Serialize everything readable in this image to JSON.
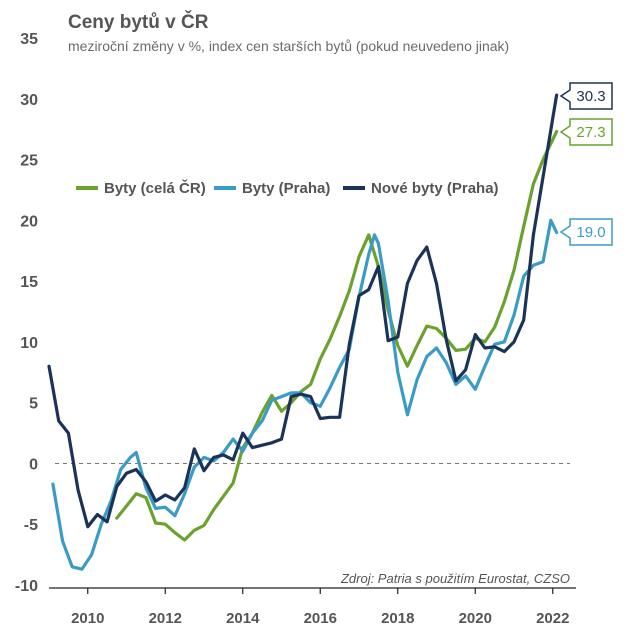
{
  "chart_data": {
    "type": "line",
    "title": "Ceny bytů v ČR",
    "subtitle": "meziroční změny v %, index cen starších bytů (pokud neuvedeno jinak)",
    "xlabel": "",
    "ylabel": "",
    "xlim": [
      2009,
      2022.6
    ],
    "ylim": [
      -10,
      35
    ],
    "yticks": [
      -10,
      -5,
      0,
      5,
      10,
      15,
      20,
      25,
      30,
      35
    ],
    "ytick_labels": [
      "-10",
      "-5",
      "0",
      "5",
      "10",
      "15",
      "20",
      "25",
      "30",
      "35"
    ],
    "xticks": [
      2010,
      2012,
      2014,
      2016,
      2018,
      2020,
      2022
    ],
    "xtick_labels": [
      "2010",
      "2012",
      "2014",
      "2016",
      "2018",
      "2020",
      "2022"
    ],
    "zero_line": "dashed",
    "grid": false,
    "legend_position": "center-left",
    "source": "Zdroj: Patria s použitím Eurostat, CZSO",
    "series": [
      {
        "name": "Byty (celá ČR)",
        "color": "#6aa22d",
        "end_label": "27.3",
        "points": [
          [
            2010.75,
            -4.5
          ],
          [
            2011.0,
            -3.5
          ],
          [
            2011.25,
            -2.5
          ],
          [
            2011.5,
            -2.8
          ],
          [
            2011.75,
            -4.9
          ],
          [
            2012.0,
            -5.0
          ],
          [
            2012.25,
            -5.7
          ],
          [
            2012.5,
            -6.3
          ],
          [
            2012.75,
            -5.5
          ],
          [
            2013.0,
            -5.1
          ],
          [
            2013.25,
            -3.8
          ],
          [
            2013.5,
            -2.7
          ],
          [
            2013.75,
            -1.6
          ],
          [
            2014.0,
            1.3
          ],
          [
            2014.25,
            2.5
          ],
          [
            2014.5,
            4.2
          ],
          [
            2014.75,
            5.6
          ],
          [
            2015.0,
            4.3
          ],
          [
            2015.25,
            5.0
          ],
          [
            2015.5,
            5.9
          ],
          [
            2015.75,
            6.5
          ],
          [
            2016.0,
            8.6
          ],
          [
            2016.25,
            10.2
          ],
          [
            2016.5,
            12.1
          ],
          [
            2016.75,
            14.2
          ],
          [
            2017.0,
            17.0
          ],
          [
            2017.25,
            18.8
          ],
          [
            2017.5,
            16.2
          ],
          [
            2017.75,
            12.6
          ],
          [
            2018.0,
            9.7
          ],
          [
            2018.25,
            8.0
          ],
          [
            2018.5,
            9.7
          ],
          [
            2018.75,
            11.3
          ],
          [
            2019.0,
            11.1
          ],
          [
            2019.25,
            10.3
          ],
          [
            2019.5,
            9.3
          ],
          [
            2019.75,
            9.4
          ],
          [
            2020.0,
            10.3
          ],
          [
            2020.25,
            10.0
          ],
          [
            2020.5,
            11.2
          ],
          [
            2020.75,
            13.3
          ],
          [
            2021.0,
            15.9
          ],
          [
            2021.25,
            19.5
          ],
          [
            2021.5,
            23.0
          ],
          [
            2021.75,
            25.0
          ],
          [
            2022.1,
            27.3
          ]
        ]
      },
      {
        "name": "Byty (Praha)",
        "color": "#3a9cc6",
        "end_label": "19.0",
        "points": [
          [
            2009.1,
            -1.7
          ],
          [
            2009.35,
            -6.4
          ],
          [
            2009.6,
            -8.5
          ],
          [
            2009.85,
            -8.7
          ],
          [
            2010.1,
            -7.5
          ],
          [
            2010.35,
            -5.0
          ],
          [
            2010.6,
            -3.1
          ],
          [
            2010.85,
            -0.5
          ],
          [
            2011.1,
            0.5
          ],
          [
            2011.25,
            0.9
          ],
          [
            2011.5,
            -2.0
          ],
          [
            2011.75,
            -3.7
          ],
          [
            2012.0,
            -3.6
          ],
          [
            2012.25,
            -4.3
          ],
          [
            2012.5,
            -2.5
          ],
          [
            2012.75,
            -0.3
          ],
          [
            2013.0,
            0.5
          ],
          [
            2013.25,
            0.2
          ],
          [
            2013.5,
            0.9
          ],
          [
            2013.75,
            2.0
          ],
          [
            2014.0,
            1.0
          ],
          [
            2014.25,
            2.5
          ],
          [
            2014.5,
            3.5
          ],
          [
            2014.75,
            5.2
          ],
          [
            2015.0,
            5.5
          ],
          [
            2015.25,
            5.8
          ],
          [
            2015.5,
            5.8
          ],
          [
            2015.75,
            5.0
          ],
          [
            2016.0,
            4.7
          ],
          [
            2016.25,
            6.2
          ],
          [
            2016.5,
            7.9
          ],
          [
            2016.75,
            9.4
          ],
          [
            2017.0,
            13.7
          ],
          [
            2017.25,
            17.2
          ],
          [
            2017.4,
            18.8
          ],
          [
            2017.5,
            18.1
          ],
          [
            2017.75,
            13.4
          ],
          [
            2018.0,
            7.5
          ],
          [
            2018.25,
            4.0
          ],
          [
            2018.5,
            6.9
          ],
          [
            2018.75,
            8.8
          ],
          [
            2019.0,
            9.5
          ],
          [
            2019.25,
            8.3
          ],
          [
            2019.5,
            6.5
          ],
          [
            2019.75,
            7.2
          ],
          [
            2020.0,
            6.1
          ],
          [
            2020.25,
            8.0
          ],
          [
            2020.5,
            9.8
          ],
          [
            2020.75,
            10.0
          ],
          [
            2021.0,
            12.2
          ],
          [
            2021.25,
            15.4
          ],
          [
            2021.5,
            16.3
          ],
          [
            2021.75,
            16.6
          ],
          [
            2021.95,
            20.0
          ],
          [
            2022.1,
            19.0
          ]
        ]
      },
      {
        "name": "Nové byty (Praha)",
        "color": "#1b3358",
        "end_label": "30.3",
        "points": [
          [
            2009.0,
            8.0
          ],
          [
            2009.25,
            3.5
          ],
          [
            2009.5,
            2.5
          ],
          [
            2009.75,
            -2.2
          ],
          [
            2010.0,
            -5.2
          ],
          [
            2010.25,
            -4.2
          ],
          [
            2010.5,
            -4.8
          ],
          [
            2010.75,
            -1.9
          ],
          [
            2011.0,
            -0.8
          ],
          [
            2011.25,
            -0.5
          ],
          [
            2011.5,
            -1.5
          ],
          [
            2011.75,
            -3.1
          ],
          [
            2012.0,
            -2.6
          ],
          [
            2012.25,
            -3.0
          ],
          [
            2012.5,
            -2.0
          ],
          [
            2012.75,
            1.2
          ],
          [
            2013.0,
            -0.6
          ],
          [
            2013.25,
            0.5
          ],
          [
            2013.5,
            0.7
          ],
          [
            2013.75,
            0.3
          ],
          [
            2014.0,
            2.5
          ],
          [
            2014.25,
            1.3
          ],
          [
            2014.5,
            1.5
          ],
          [
            2014.75,
            1.7
          ],
          [
            2015.0,
            2.0
          ],
          [
            2015.25,
            5.5
          ],
          [
            2015.5,
            5.7
          ],
          [
            2015.75,
            5.5
          ],
          [
            2016.0,
            3.7
          ],
          [
            2016.25,
            3.8
          ],
          [
            2016.5,
            3.8
          ],
          [
            2016.75,
            9.8
          ],
          [
            2017.0,
            13.8
          ],
          [
            2017.25,
            14.3
          ],
          [
            2017.5,
            16.2
          ],
          [
            2017.75,
            10.1
          ],
          [
            2018.0,
            10.4
          ],
          [
            2018.25,
            14.8
          ],
          [
            2018.5,
            16.7
          ],
          [
            2018.75,
            17.8
          ],
          [
            2019.0,
            14.8
          ],
          [
            2019.25,
            10.2
          ],
          [
            2019.5,
            6.8
          ],
          [
            2019.75,
            7.7
          ],
          [
            2020.0,
            10.6
          ],
          [
            2020.25,
            9.5
          ],
          [
            2020.5,
            9.6
          ],
          [
            2020.75,
            9.2
          ],
          [
            2021.0,
            10.0
          ],
          [
            2021.25,
            11.8
          ],
          [
            2021.5,
            18.8
          ],
          [
            2021.75,
            23.6
          ],
          [
            2022.1,
            30.3
          ]
        ]
      }
    ]
  }
}
